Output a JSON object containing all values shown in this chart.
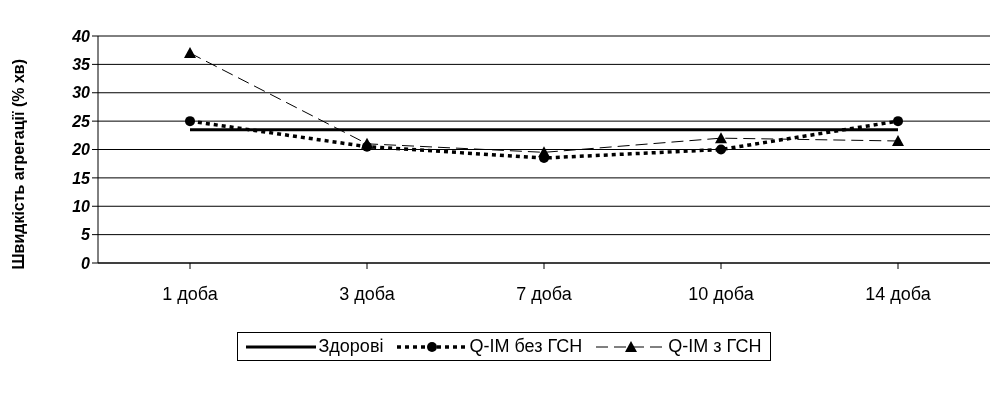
{
  "chart_data": {
    "type": "line",
    "ylabel": "Швидкість агрегації (% хв)",
    "categories": [
      "1 доба",
      "3 доба",
      "7 доба",
      "10 доба",
      "14 доба"
    ],
    "series": [
      {
        "name": "Здорові",
        "color": "#000000",
        "values": [
          23.5,
          23.5,
          23.5,
          23.5,
          23.5
        ],
        "marker": "none",
        "line_style": "solid"
      },
      {
        "name": "Q-IM без ГСН",
        "color": "#000000",
        "values": [
          25,
          20.5,
          18.5,
          20,
          25
        ],
        "marker": "circle",
        "line_style": "dotted"
      },
      {
        "name": "Q-IM з ГСН",
        "color": "#000000",
        "values": [
          37,
          21,
          19.5,
          22,
          21.5
        ],
        "marker": "triangle",
        "line_style": "dashed"
      }
    ],
    "ylim": [
      0,
      40
    ],
    "yticks": [
      0,
      5,
      10,
      15,
      20,
      25,
      30,
      35,
      40
    ],
    "grid": "y",
    "legend": "bottom"
  }
}
